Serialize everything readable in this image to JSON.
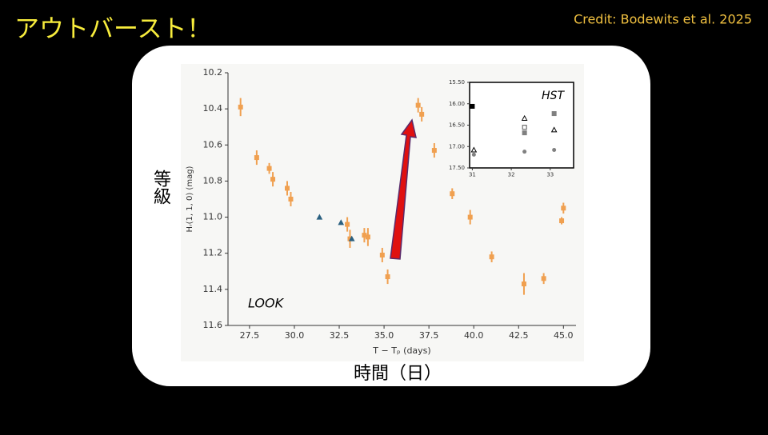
{
  "slide": {
    "title": "アウトバースト！",
    "credit": "Credit: Bodewits et al. 2025",
    "y_caption": "等級",
    "x_caption": "時間（日）"
  },
  "chart_data": [
    {
      "type": "scatter",
      "label": "LOOK",
      "x_label": "T − Tₚ (days)",
      "y_label": "Hᵣ(1, 1, 0) (mag)",
      "xlim": [
        26.3,
        45.7
      ],
      "ylim": [
        11.6,
        10.2
      ],
      "xticks": [
        27.5,
        {
          "value": 30,
          "label": "30.0"
        },
        32.5,
        {
          "value": 35,
          "label": "35.0"
        },
        37.5,
        {
          "value": 40,
          "label": "40.0"
        },
        42.5,
        {
          "value": 45,
          "label": "45.0"
        }
      ],
      "yticks": [
        10.2,
        10.4,
        10.6,
        10.8,
        {
          "value": 11,
          "label": "11.0"
        },
        11.2,
        11.4,
        11.6
      ],
      "series": [
        {
          "marker": "square",
          "color": "#f0a050",
          "x": [
            27.0,
            27.9,
            28.6,
            28.8,
            29.6,
            29.8,
            32.95,
            33.1,
            33.9,
            34.1,
            34.9,
            35.2,
            36.9,
            37.1,
            37.8,
            38.8,
            39.8,
            41.0,
            42.8,
            43.9,
            44.9,
            45.0
          ],
          "values": [
            10.39,
            10.67,
            10.73,
            10.79,
            10.84,
            10.9,
            11.04,
            11.12,
            11.1,
            11.11,
            11.21,
            11.33,
            10.38,
            10.43,
            10.63,
            10.87,
            11.0,
            11.22,
            11.37,
            11.34,
            11.02,
            10.95
          ],
          "errors": [
            0.05,
            0.04,
            0.03,
            0.04,
            0.04,
            0.04,
            0.04,
            0.05,
            0.04,
            0.05,
            0.04,
            0.04,
            0.04,
            0.04,
            0.04,
            0.03,
            0.04,
            0.03,
            0.06,
            0.03,
            0.02,
            0.03
          ]
        },
        {
          "marker": "triangle",
          "color": "#2a6080",
          "x": [
            31.4,
            32.6,
            33.2
          ],
          "values": [
            11.0,
            11.03,
            11.12
          ]
        }
      ]
    },
    {
      "type": "scatter",
      "label": "HST",
      "xlim": [
        30.93,
        33.6
      ],
      "ylim": [
        17.5,
        15.5
      ],
      "xticks": [
        31,
        32,
        33
      ],
      "yticks": [
        {
          "value": 15.5,
          "label": "15.50"
        },
        {
          "value": 16,
          "label": "16.00"
        },
        {
          "value": 16.5,
          "label": "16.50"
        },
        {
          "value": 17,
          "label": "17.00"
        },
        {
          "value": 17.5,
          "label": "17.50"
        }
      ],
      "series": [
        {
          "marker": "square",
          "color": "#000000",
          "x": [
            31.0
          ],
          "values": [
            16.06
          ]
        },
        {
          "marker": "open-triangle",
          "color": "#000000",
          "x": [
            31.04,
            32.34,
            33.1
          ],
          "values": [
            17.08,
            16.34,
            16.61
          ]
        },
        {
          "marker": "open-square",
          "color": "#555555",
          "x": [
            32.34
          ],
          "values": [
            16.55
          ]
        },
        {
          "marker": "square",
          "color": "#808080",
          "x": [
            32.34,
            33.1
          ],
          "values": [
            16.68,
            16.23
          ]
        },
        {
          "marker": "circle",
          "color": "#808080",
          "x": [
            31.04,
            32.34,
            33.1
          ],
          "values": [
            17.19,
            17.12,
            17.08
          ]
        }
      ]
    }
  ]
}
